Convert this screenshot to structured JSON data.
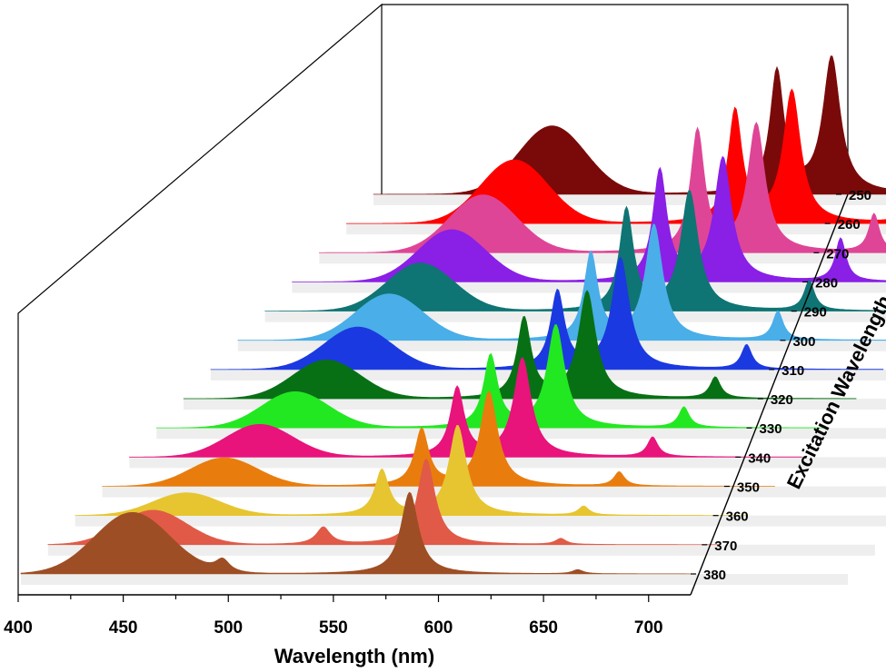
{
  "chart_data": {
    "type": "area",
    "subtype": "3d-waterfall",
    "title": "",
    "xlabel": "Wavelength (nm)",
    "ylabel": "Excitation Wavelength",
    "xlim": [
      400,
      720
    ],
    "x_ticks": [
      400,
      450,
      500,
      550,
      600,
      650,
      700
    ],
    "series": [
      {
        "name": "250",
        "color": "#7a0a0a",
        "peaks": [
          [
            485,
            0.5,
            16
          ],
          [
            592,
            0.9,
            4
          ],
          [
            618,
            1.0,
            5
          ],
          [
            672,
            0.2,
            3
          ]
        ]
      },
      {
        "name": "260",
        "color": "#ff0000",
        "peaks": [
          [
            480,
            0.48,
            16
          ],
          [
            585,
            0.85,
            4
          ],
          [
            612,
            1.0,
            5
          ],
          [
            668,
            0.25,
            3
          ]
        ]
      },
      {
        "name": "270",
        "color": "#df4596",
        "peaks": [
          [
            478,
            0.45,
            16
          ],
          [
            580,
            0.95,
            4
          ],
          [
            608,
            1.0,
            5
          ],
          [
            664,
            0.3,
            3
          ]
        ]
      },
      {
        "name": "280",
        "color": "#8a1fe6",
        "peaks": [
          [
            476,
            0.42,
            16
          ],
          [
            575,
            0.9,
            4
          ],
          [
            605,
            1.0,
            5
          ],
          [
            661,
            0.35,
            3
          ]
        ]
      },
      {
        "name": "290",
        "color": "#0f7474",
        "peaks": [
          [
            474,
            0.4,
            16
          ],
          [
            572,
            0.85,
            4
          ],
          [
            602,
            1.0,
            5
          ],
          [
            659,
            0.25,
            3
          ]
        ]
      },
      {
        "name": "300",
        "color": "#4aaee8",
        "peaks": [
          [
            472,
            0.4,
            16
          ],
          [
            568,
            0.75,
            4
          ],
          [
            598,
            1.0,
            5
          ],
          [
            657,
            0.25,
            3
          ]
        ]
      },
      {
        "name": "310",
        "color": "#1b39e0",
        "peaks": [
          [
            470,
            0.38,
            16
          ],
          [
            565,
            0.7,
            4
          ],
          [
            595,
            1.0,
            5
          ],
          [
            655,
            0.22,
            3
          ]
        ]
      },
      {
        "name": "320",
        "color": "#077014",
        "peaks": [
          [
            468,
            0.36,
            16
          ],
          [
            562,
            0.75,
            4
          ],
          [
            592,
            1.0,
            5
          ],
          [
            653,
            0.2,
            3
          ]
        ]
      },
      {
        "name": "330",
        "color": "#22e821",
        "peaks": [
          [
            466,
            0.35,
            16
          ],
          [
            559,
            0.7,
            4
          ],
          [
            590,
            1.0,
            5
          ],
          [
            651,
            0.2,
            3
          ]
        ]
      },
      {
        "name": "340",
        "color": "#e8137b",
        "peaks": [
          [
            462,
            0.33,
            16
          ],
          [
            556,
            0.7,
            4
          ],
          [
            587,
            1.0,
            5
          ],
          [
            649,
            0.2,
            3
          ]
        ]
      },
      {
        "name": "350",
        "color": "#e87d0d",
        "peaks": [
          [
            458,
            0.3,
            16
          ],
          [
            552,
            0.6,
            4
          ],
          [
            584,
            1.0,
            5
          ],
          [
            646,
            0.15,
            3
          ]
        ]
      },
      {
        "name": "360",
        "color": "#e6c530",
        "peaks": [
          [
            453,
            0.25,
            16
          ],
          [
            546,
            0.5,
            4
          ],
          [
            582,
            1.0,
            5
          ],
          [
            642,
            0.1,
            3
          ]
        ]
      },
      {
        "name": "370",
        "color": "#e05a47",
        "peaks": [
          [
            450,
            0.4,
            16
          ],
          [
            531,
            0.2,
            4
          ],
          [
            580,
            1.0,
            5
          ],
          [
            644,
            0.07,
            3
          ]
        ]
      },
      {
        "name": "380",
        "color": "#9e4e24",
        "peaks": [
          [
            453,
            0.75,
            18
          ],
          [
            496,
            0.15,
            4
          ],
          [
            585,
            1.0,
            5
          ],
          [
            665,
            0.05,
            3
          ]
        ]
      }
    ]
  }
}
